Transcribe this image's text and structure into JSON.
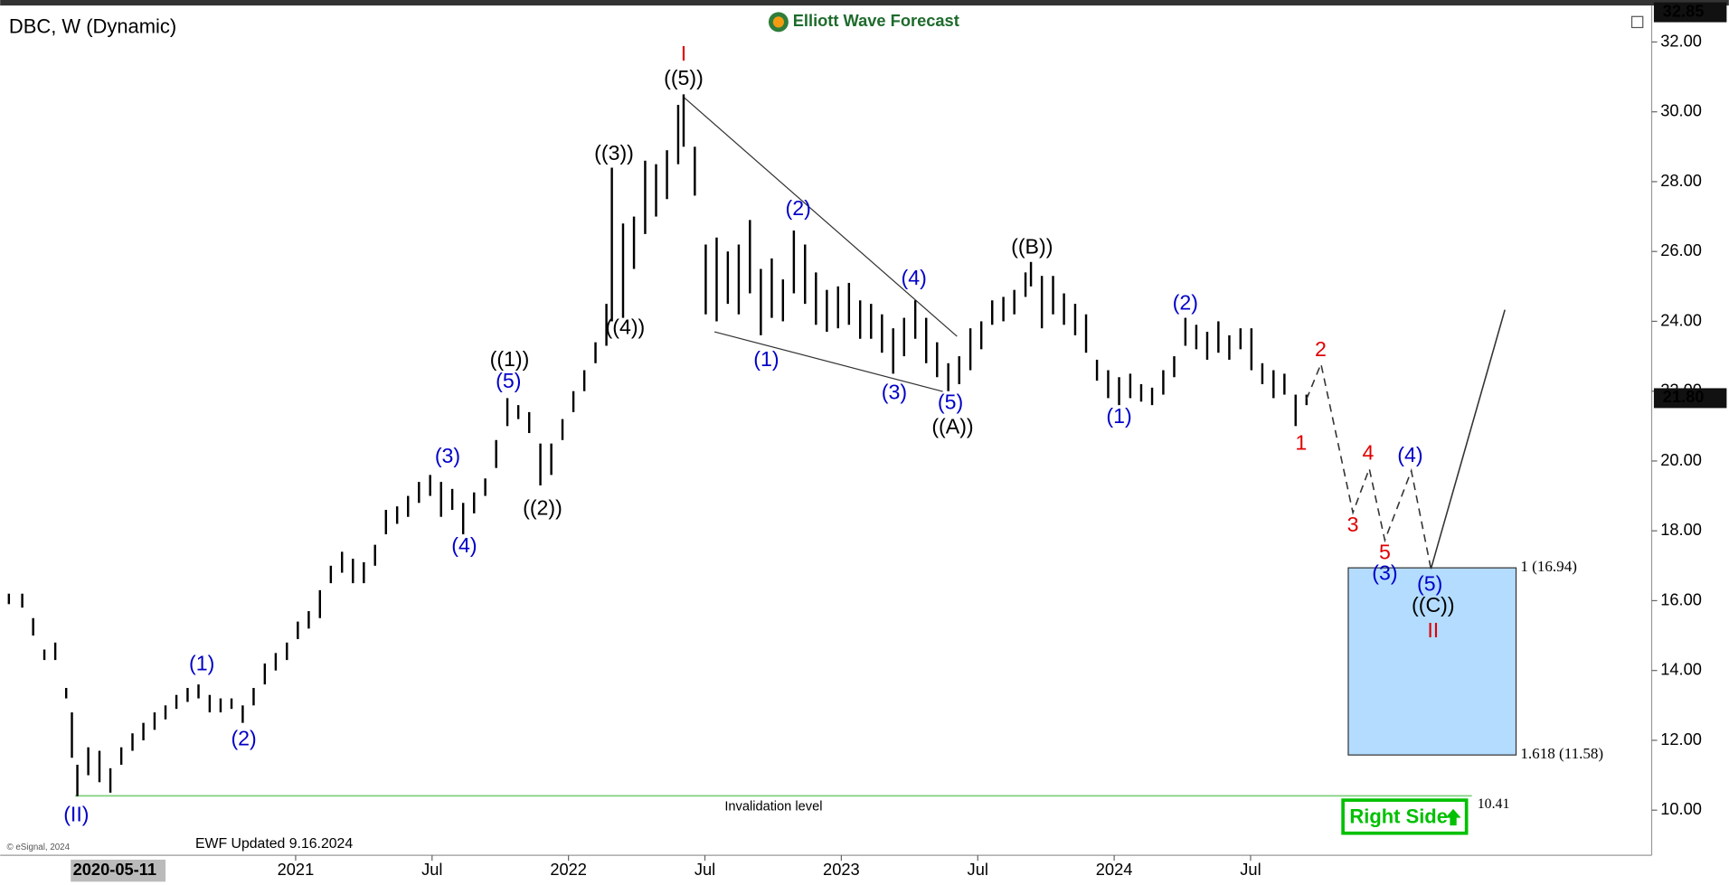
{
  "chart_data": {
    "type": "ohlc",
    "title": "DBC, W (Dynamic)",
    "brand": "Elliott Wave Forecast",
    "updated": "EWF Updated 9.16.2024",
    "copyright": "© eSignal, 2024",
    "badge": "Right Side",
    "crosshair_label": "2020-05-11",
    "xlim": [
      2019.917,
      2025.97
    ],
    "ylim": [
      8.74,
      32.95
    ],
    "xticks": [
      2021,
      {
        "value": 2021.5,
        "label": "Jul"
      },
      2022,
      {
        "value": 2022.5,
        "label": "Jul"
      },
      2023,
      {
        "value": 2023.5,
        "label": "Jul"
      },
      2024,
      {
        "value": 2024.5,
        "label": "Jul"
      }
    ],
    "yticks": [
      {
        "value": 10,
        "label": "10.00"
      },
      {
        "value": 12,
        "label": "12.00"
      },
      {
        "value": 14,
        "label": "14.00"
      },
      {
        "value": 16,
        "label": "16.00"
      },
      {
        "value": 18,
        "label": "18.00"
      },
      {
        "value": 20,
        "label": "20.00"
      },
      {
        "value": 22,
        "label": "22.00"
      },
      {
        "value": 24,
        "label": "24.00"
      },
      {
        "value": 26,
        "label": "26.00"
      },
      {
        "value": 28,
        "label": "28.00"
      },
      {
        "value": 30,
        "label": "30.00"
      },
      {
        "value": 32,
        "label": "32.00"
      }
    ],
    "price_tags": [
      {
        "value": 32.85,
        "label": "32.85"
      },
      {
        "value": 21.8,
        "label": "21.80"
      }
    ],
    "color": "#000000",
    "x": [
      2019.949,
      2019.998,
      2020.038,
      2020.079,
      2020.119,
      2020.159,
      2020.18,
      2020.2,
      2020.24,
      2020.281,
      2020.321,
      2020.361,
      2020.402,
      2020.442,
      2020.483,
      2020.523,
      2020.563,
      2020.604,
      2020.644,
      2020.685,
      2020.725,
      2020.765,
      2020.806,
      2020.846,
      2020.887,
      2020.927,
      2020.968,
      2021.008,
      2021.048,
      2021.089,
      2021.129,
      2021.17,
      2021.21,
      2021.25,
      2021.291,
      2021.331,
      2021.372,
      2021.412,
      2021.452,
      2021.493,
      2021.533,
      2021.574,
      2021.614,
      2021.654,
      2021.695,
      2021.735,
      2021.776,
      2021.816,
      2021.856,
      2021.897,
      2021.937,
      2021.978,
      2022.018,
      2022.058,
      2022.099,
      2022.139,
      2022.159,
      2022.2,
      2022.24,
      2022.281,
      2022.321,
      2022.361,
      2022.402,
      2022.422,
      2022.463,
      2022.503,
      2022.543,
      2022.584,
      2022.624,
      2022.665,
      2022.705,
      2022.745,
      2022.786,
      2022.826,
      2022.867,
      2022.907,
      2022.947,
      2022.988,
      2023.028,
      2023.069,
      2023.109,
      2023.149,
      2023.19,
      2023.23,
      2023.271,
      2023.311,
      2023.351,
      2023.392,
      2023.432,
      2023.473,
      2023.513,
      2023.553,
      2023.594,
      2023.634,
      2023.675,
      2023.695,
      2023.735,
      2023.776,
      2023.816,
      2023.857,
      2023.897,
      2023.937,
      2023.978,
      2024.018,
      2024.059,
      2024.099,
      2024.139,
      2024.18,
      2024.22,
      2024.261,
      2024.301,
      2024.341,
      2024.382,
      2024.422,
      2024.463,
      2024.503,
      2024.543,
      2024.584,
      2024.624,
      2024.665,
      2024.705
    ],
    "high": [
      16.2,
      16.2,
      15.5,
      14.6,
      14.8,
      13.5,
      12.8,
      11.3,
      11.8,
      11.7,
      11.2,
      11.8,
      12.2,
      12.5,
      12.8,
      13.0,
      13.3,
      13.5,
      13.6,
      13.3,
      13.2,
      13.2,
      13.0,
      13.5,
      14.2,
      14.5,
      14.8,
      15.4,
      15.7,
      16.3,
      17.0,
      17.4,
      17.2,
      17.1,
      17.6,
      18.6,
      18.7,
      19.0,
      19.4,
      19.6,
      19.4,
      19.2,
      18.8,
      19.1,
      19.5,
      20.6,
      21.8,
      21.6,
      21.4,
      20.5,
      20.5,
      21.2,
      22.0,
      22.6,
      23.4,
      24.5,
      28.4,
      26.8,
      27.0,
      28.6,
      28.5,
      28.9,
      30.2,
      30.5,
      29.0,
      26.2,
      26.4,
      26.0,
      26.2,
      26.9,
      25.5,
      25.8,
      25.2,
      26.6,
      26.2,
      25.4,
      24.9,
      25.0,
      25.1,
      24.6,
      24.5,
      24.2,
      23.8,
      24.1,
      24.6,
      24.1,
      23.4,
      22.8,
      23.0,
      23.8,
      24.0,
      24.6,
      24.7,
      24.9,
      25.4,
      25.7,
      25.3,
      25.3,
      24.8,
      24.5,
      24.2,
      22.9,
      22.6,
      22.4,
      22.5,
      22.2,
      22.1,
      22.6,
      23.0,
      24.1,
      23.9,
      23.7,
      24.0,
      23.6,
      23.8,
      23.8,
      22.8,
      22.6,
      22.5,
      21.9,
      21.9
    ],
    "low": [
      15.9,
      15.8,
      15.0,
      14.3,
      14.3,
      13.2,
      11.5,
      10.4,
      11.0,
      10.8,
      10.5,
      11.3,
      11.7,
      12.0,
      12.3,
      12.6,
      12.9,
      13.1,
      13.2,
      12.8,
      12.8,
      12.9,
      12.5,
      13.0,
      13.6,
      14.0,
      14.3,
      14.9,
      15.2,
      15.5,
      16.5,
      16.8,
      16.5,
      16.5,
      17.0,
      17.9,
      18.2,
      18.4,
      18.8,
      19.0,
      18.4,
      18.6,
      17.9,
      18.5,
      19.0,
      19.8,
      21.0,
      21.2,
      20.8,
      19.3,
      19.6,
      20.6,
      21.4,
      22.0,
      22.8,
      23.3,
      24.0,
      24.1,
      25.5,
      26.5,
      27.0,
      27.5,
      28.5,
      29.0,
      27.6,
      24.2,
      24.0,
      24.5,
      24.2,
      24.8,
      23.6,
      24.1,
      24.0,
      24.8,
      24.5,
      23.9,
      23.7,
      23.8,
      23.9,
      23.5,
      23.5,
      23.1,
      22.5,
      23.0,
      23.5,
      22.8,
      22.4,
      22.0,
      22.2,
      22.6,
      23.2,
      23.9,
      24.0,
      24.2,
      24.7,
      25.0,
      23.8,
      24.2,
      23.9,
      23.6,
      23.1,
      22.3,
      21.8,
      21.6,
      21.8,
      21.7,
      21.6,
      21.9,
      22.4,
      23.3,
      23.2,
      22.9,
      23.1,
      22.9,
      23.2,
      22.6,
      22.2,
      21.8,
      21.9,
      21.0,
      21.6
    ],
    "trendlines": [
      {
        "x": [
          2022.422,
          2023.424
        ],
        "y": [
          30.42,
          23.57
        ]
      },
      {
        "x": [
          2022.535,
          2023.372
        ],
        "y": [
          23.7,
          21.99
        ]
      }
    ],
    "projection": {
      "x": [
        2024.705,
        2024.758,
        2024.875,
        2024.935,
        2024.992,
        2025.089,
        2025.161
      ],
      "y": [
        21.77,
        22.78,
        18.52,
        19.78,
        17.73,
        19.72,
        16.91
      ]
    },
    "rally": {
      "x": [
        2025.161,
        2025.432
      ],
      "y": [
        16.91,
        24.33
      ]
    },
    "fibonacci": {
      "x_start": 2024.858,
      "x_end": 2025.473,
      "color": "#b3dcff",
      "levels": [
        {
          "value": 16.94,
          "label": "1 (16.94)"
        },
        {
          "value": 11.58,
          "label": "1.618 (11.58)"
        }
      ]
    },
    "invalidation": {
      "value": 10.41,
      "label": "10.41",
      "text": "Invalidation level",
      "x_start": 2020.192,
      "x_end": 2025.311,
      "color": "#7fd17f"
    },
    "annotations": [
      {
        "text": "I",
        "x": 2022.422,
        "y": 31.62,
        "color": "#e00000",
        "emphasis": true
      },
      {
        "text": "((5))",
        "x": 2022.422,
        "y": 30.93,
        "color": "#000000"
      },
      {
        "text": "((3))",
        "x": 2022.167,
        "y": 28.78,
        "color": "#000000"
      },
      {
        "text": "((4))",
        "x": 2022.208,
        "y": 23.79,
        "color": "#000000"
      },
      {
        "text": "((1))",
        "x": 2021.784,
        "y": 22.88,
        "color": "#000000"
      },
      {
        "text": "((2))",
        "x": 2021.905,
        "y": 18.62,
        "color": "#000000"
      },
      {
        "text": "((A))",
        "x": 2023.408,
        "y": 20.95,
        "color": "#000000"
      },
      {
        "text": "((B))",
        "x": 2023.699,
        "y": 26.1,
        "color": "#000000"
      },
      {
        "text": "((C))",
        "x": 2025.169,
        "y": 15.84,
        "color": "#000000"
      },
      {
        "text": "(II)",
        "x": 2020.196,
        "y": 9.84,
        "color": "#0000c8",
        "emphasis": true
      },
      {
        "text": "(1)",
        "x": 2020.656,
        "y": 14.17,
        "color": "#0000c8"
      },
      {
        "text": "(2)",
        "x": 2020.81,
        "y": 12.02,
        "color": "#0000c8"
      },
      {
        "text": "(3)",
        "x": 2021.557,
        "y": 20.1,
        "color": "#0000c8"
      },
      {
        "text": "(4)",
        "x": 2021.618,
        "y": 17.54,
        "color": "#0000c8"
      },
      {
        "text": "(5)",
        "x": 2021.78,
        "y": 22.25,
        "color": "#0000c8"
      },
      {
        "text": "(1)",
        "x": 2022.725,
        "y": 22.88,
        "color": "#0000c8"
      },
      {
        "text": "(2)",
        "x": 2022.842,
        "y": 27.2,
        "color": "#0000c8"
      },
      {
        "text": "(3)",
        "x": 2023.194,
        "y": 21.93,
        "color": "#0000c8"
      },
      {
        "text": "(4)",
        "x": 2023.266,
        "y": 25.21,
        "color": "#0000c8"
      },
      {
        "text": "(5)",
        "x": 2023.4,
        "y": 21.65,
        "color": "#0000c8"
      },
      {
        "text": "(1)",
        "x": 2024.018,
        "y": 21.24,
        "color": "#0000c8"
      },
      {
        "text": "(2)",
        "x": 2024.261,
        "y": 24.49,
        "color": "#0000c8"
      },
      {
        "text": "(3)",
        "x": 2024.992,
        "y": 16.75,
        "color": "#0000c8"
      },
      {
        "text": "(4)",
        "x": 2025.085,
        "y": 20.13,
        "color": "#0000c8"
      },
      {
        "text": "(5)",
        "x": 2025.157,
        "y": 16.44,
        "color": "#0000c8"
      },
      {
        "text": "1",
        "x": 2024.685,
        "y": 20.48,
        "color": "#e00000"
      },
      {
        "text": "2",
        "x": 2024.757,
        "y": 23.16,
        "color": "#e00000"
      },
      {
        "text": "3",
        "x": 2024.875,
        "y": 18.14,
        "color": "#e00000"
      },
      {
        "text": "4",
        "x": 2024.931,
        "y": 20.19,
        "color": "#e00000"
      },
      {
        "text": "5",
        "x": 2024.992,
        "y": 17.35,
        "color": "#e00000"
      },
      {
        "text": "II",
        "x": 2025.169,
        "y": 15.11,
        "color": "#e00000",
        "emphasis": true
      }
    ]
  }
}
